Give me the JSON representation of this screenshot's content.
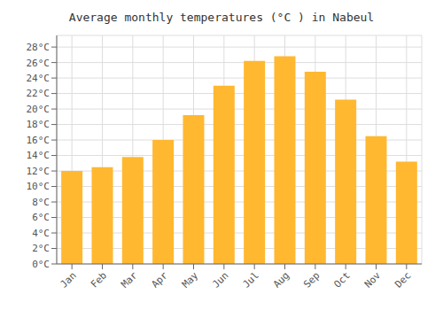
{
  "chart_data": {
    "type": "bar",
    "title": "Average monthly temperatures (°C ) in Nabeul",
    "categories": [
      "Jan",
      "Feb",
      "Mar",
      "Apr",
      "May",
      "Jun",
      "Jul",
      "Aug",
      "Sep",
      "Oct",
      "Nov",
      "Dec"
    ],
    "values": [
      12.0,
      12.5,
      13.8,
      16.0,
      19.2,
      23.0,
      26.2,
      26.8,
      24.8,
      21.2,
      16.5,
      13.2
    ],
    "color": "#FFB830",
    "ylim": [
      0,
      29.5
    ],
    "yticks": [
      {
        "value": 0,
        "label": "0°C"
      },
      {
        "value": 2,
        "label": "2°C"
      },
      {
        "value": 4,
        "label": "4°C"
      },
      {
        "value": 6,
        "label": "6°C"
      },
      {
        "value": 8,
        "label": "8°C"
      },
      {
        "value": 10,
        "label": "10°C"
      },
      {
        "value": 12,
        "label": "12°C"
      },
      {
        "value": 14,
        "label": "14°C"
      },
      {
        "value": 16,
        "label": "16°C"
      },
      {
        "value": 18,
        "label": "18°C"
      },
      {
        "value": 20,
        "label": "20°C"
      },
      {
        "value": 22,
        "label": "22°C"
      },
      {
        "value": 24,
        "label": "24°C"
      },
      {
        "value": 26,
        "label": "26°C"
      },
      {
        "value": 28,
        "label": "28°C"
      }
    ],
    "grid": true
  }
}
